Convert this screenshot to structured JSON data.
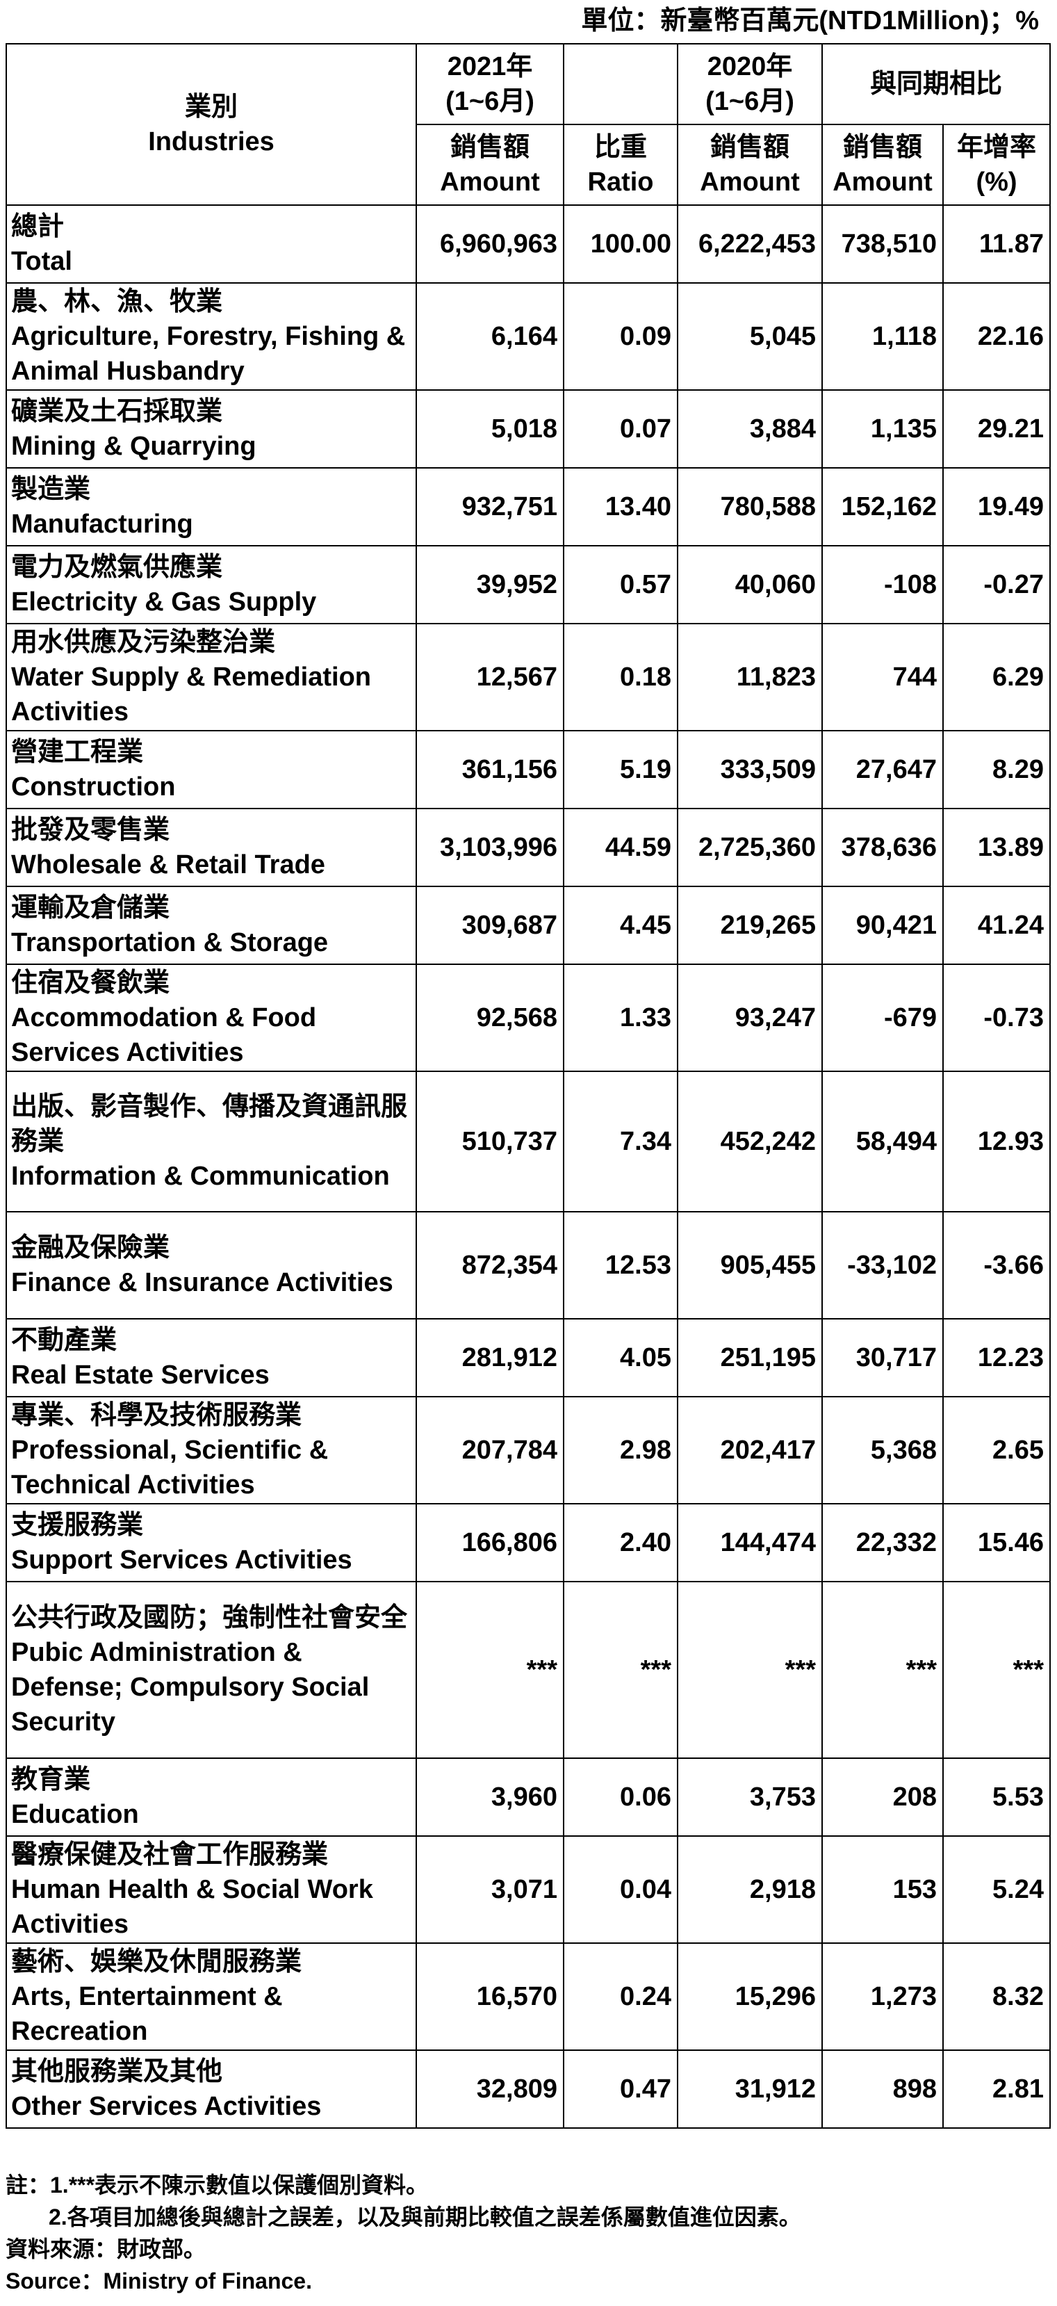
{
  "unit_line": "單位：新臺幣百萬元(NTD1Million)；%",
  "header": {
    "industries_zh": "業別",
    "industries_en": "Industries",
    "y2021_zh": "2021年",
    "y2021_period": "(1~6月)",
    "y2020_zh": "2020年",
    "y2020_period": "(1~6月)",
    "compare_zh": "與同期相比",
    "sales_zh": "銷售額",
    "sales_en": "Amount",
    "ratio_zh": "比重",
    "ratio_en": "Ratio",
    "growth_zh": "年增率",
    "growth_en": "(%)"
  },
  "rows": [
    {
      "zh": "總計",
      "en": "Total",
      "amt2021": "6,960,963",
      "ratio": "100.00",
      "amt2020": "6,222,453",
      "diff": "738,510",
      "growth": "11.87"
    },
    {
      "zh": "農、林、漁、牧業",
      "en": "Agriculture, Forestry, Fishing & Animal Husbandry",
      "amt2021": "6,164",
      "ratio": "0.09",
      "amt2020": "5,045",
      "diff": "1,118",
      "growth": "22.16"
    },
    {
      "zh": "礦業及土石採取業",
      "en": "Mining & Quarrying",
      "amt2021": "5,018",
      "ratio": "0.07",
      "amt2020": "3,884",
      "diff": "1,135",
      "growth": "29.21"
    },
    {
      "zh": "製造業",
      "en": "Manufacturing",
      "amt2021": "932,751",
      "ratio": "13.40",
      "amt2020": "780,588",
      "diff": "152,162",
      "growth": "19.49"
    },
    {
      "zh": "電力及燃氣供應業",
      "en": "Electricity & Gas Supply",
      "amt2021": "39,952",
      "ratio": "0.57",
      "amt2020": "40,060",
      "diff": "-108",
      "growth": "-0.27"
    },
    {
      "zh": "用水供應及污染整治業",
      "en": "Water Supply & Remediation Activities",
      "amt2021": "12,567",
      "ratio": "0.18",
      "amt2020": "11,823",
      "diff": "744",
      "growth": "6.29"
    },
    {
      "zh": "營建工程業",
      "en": "Construction",
      "amt2021": "361,156",
      "ratio": "5.19",
      "amt2020": "333,509",
      "diff": "27,647",
      "growth": "8.29"
    },
    {
      "zh": "批發及零售業",
      "en": "Wholesale & Retail Trade",
      "amt2021": "3,103,996",
      "ratio": "44.59",
      "amt2020": "2,725,360",
      "diff": "378,636",
      "growth": "13.89"
    },
    {
      "zh": "運輸及倉儲業",
      "en": "Transportation & Storage",
      "amt2021": "309,687",
      "ratio": "4.45",
      "amt2020": "219,265",
      "diff": "90,421",
      "growth": "41.24"
    },
    {
      "zh": "住宿及餐飲業",
      "en": "Accommodation & Food Services Activities",
      "amt2021": "92,568",
      "ratio": "1.33",
      "amt2020": "93,247",
      "diff": "-679",
      "growth": "-0.73"
    },
    {
      "zh": "出版、影音製作、傳播及資通訊服務業",
      "en": "Information & Communication",
      "amt2021": "510,737",
      "ratio": "7.34",
      "amt2020": "452,242",
      "diff": "58,494",
      "growth": "12.93"
    },
    {
      "zh": "金融及保險業",
      "en": "Finance & Insurance Activities",
      "amt2021": "872,354",
      "ratio": "12.53",
      "amt2020": "905,455",
      "diff": "-33,102",
      "growth": "-3.66"
    },
    {
      "zh": "不動產業",
      "en": "Real Estate Services",
      "amt2021": "281,912",
      "ratio": "4.05",
      "amt2020": "251,195",
      "diff": "30,717",
      "growth": "12.23"
    },
    {
      "zh": "專業、科學及技術服務業",
      "en": "Professional, Scientific & Technical Activities",
      "amt2021": "207,784",
      "ratio": "2.98",
      "amt2020": "202,417",
      "diff": "5,368",
      "growth": "2.65"
    },
    {
      "zh": "支援服務業",
      "en": "Support Services Activities",
      "amt2021": "166,806",
      "ratio": "2.40",
      "amt2020": "144,474",
      "diff": "22,332",
      "growth": "15.46"
    },
    {
      "zh": "公共行政及國防；強制性社會安全",
      "en": "Pubic Administration & Defense; Compulsory Social Security",
      "amt2021": "***",
      "ratio": "***",
      "amt2020": "***",
      "diff": "***",
      "growth": "***"
    },
    {
      "zh": "教育業",
      "en": "Education",
      "amt2021": "3,960",
      "ratio": "0.06",
      "amt2020": "3,753",
      "diff": "208",
      "growth": "5.53"
    },
    {
      "zh": "醫療保健及社會工作服務業",
      "en": "Human Health & Social Work Activities",
      "amt2021": "3,071",
      "ratio": "0.04",
      "amt2020": "2,918",
      "diff": "153",
      "growth": "5.24"
    },
    {
      "zh": "藝術、娛樂及休閒服務業",
      "en": "Arts, Entertainment & Recreation",
      "amt2021": "16,570",
      "ratio": "0.24",
      "amt2020": "15,296",
      "diff": "1,273",
      "growth": "8.32"
    },
    {
      "zh": "其他服務業及其他",
      "en": "Other Services Activities",
      "amt2021": "32,809",
      "ratio": "0.47",
      "amt2020": "31,912",
      "diff": "898",
      "growth": "2.81"
    }
  ],
  "notes": {
    "note1": "註：1.***表示不陳示數值以保護個別資料。",
    "note2": "2.各項目加總後與總計之誤差，以及與前期比較值之誤差係屬數值進位因素。",
    "source_zh": "資料來源：財政部。",
    "source_en": "Source：Ministry of Finance."
  }
}
